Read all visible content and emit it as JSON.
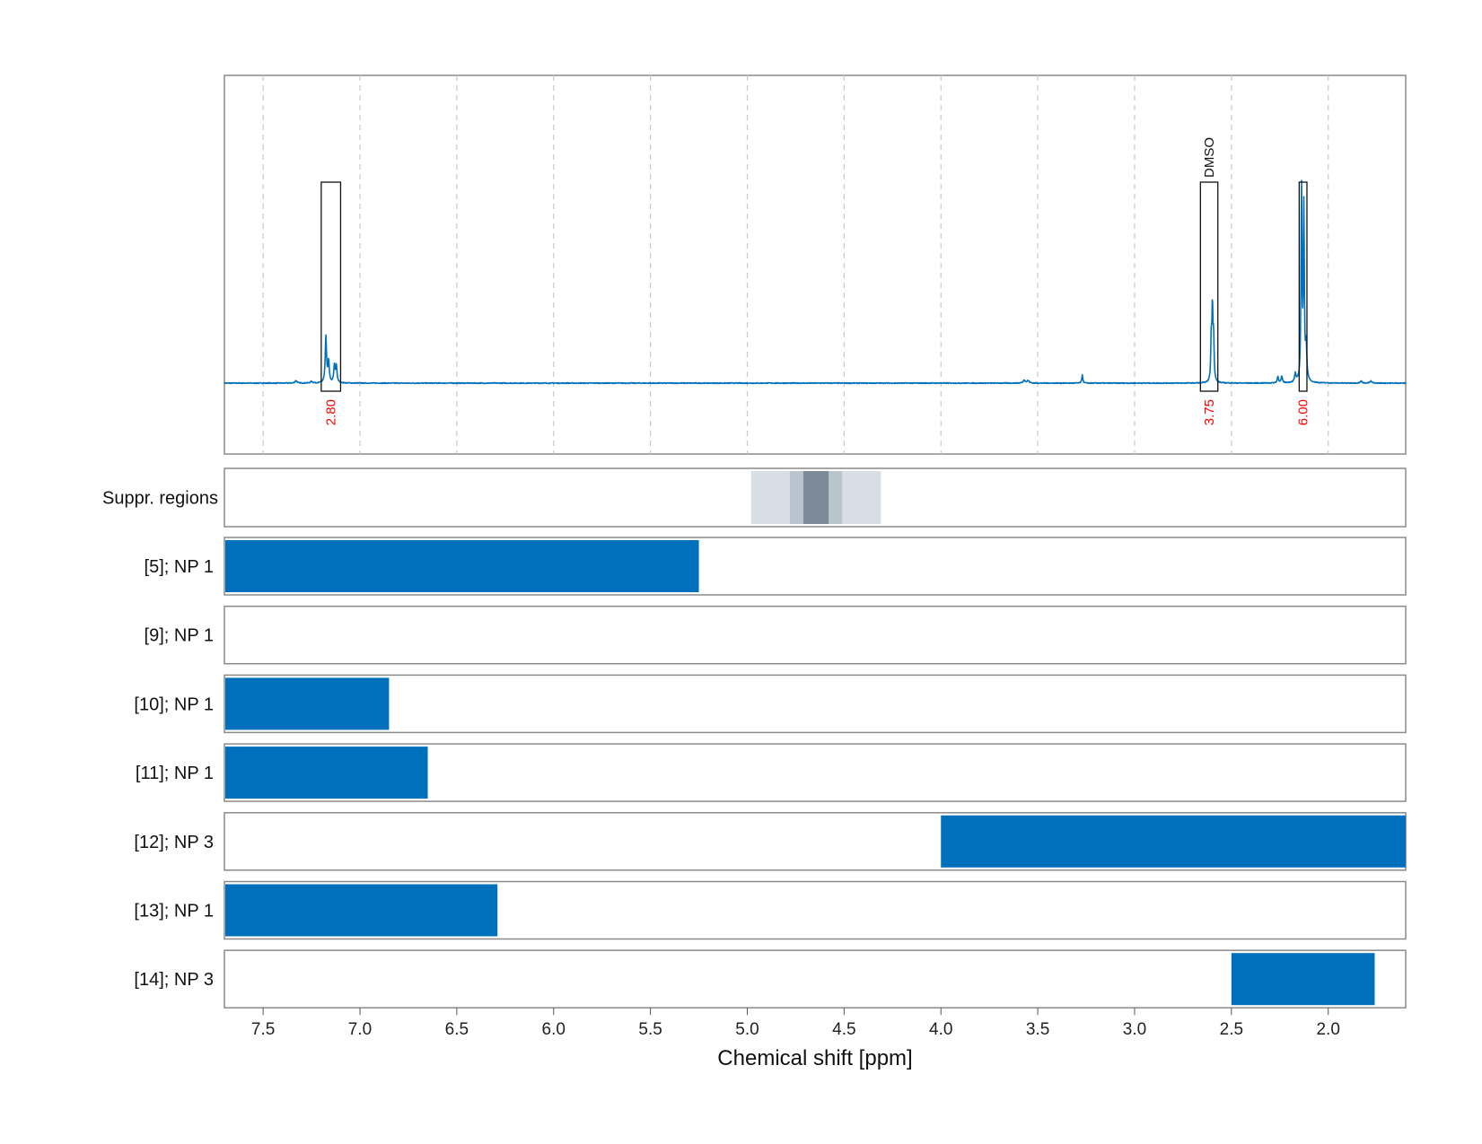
{
  "chart_data": {
    "type": "nmr_spectrum_with_track_bars",
    "xlabel": "Chemical shift [ppm]",
    "xlim": [
      7.7,
      1.6
    ],
    "x_reversed": true,
    "x_ticks": [
      7.5,
      7.0,
      6.5,
      6.0,
      5.5,
      5.0,
      4.5,
      4.0,
      3.5,
      3.0,
      2.5,
      2.0
    ],
    "x_tick_labels": [
      "7.5",
      "7.0",
      "6.5",
      "6.0",
      "5.5",
      "5.0",
      "4.5",
      "4.0",
      "3.5",
      "3.0",
      "2.5",
      "2.0"
    ],
    "spectrum": {
      "color": "#0070bd",
      "baseline_noise": 0.004,
      "peaks": [
        {
          "ppm": 7.176,
          "height": 0.22,
          "width": 0.004
        },
        {
          "ppm": 7.162,
          "height": 0.1,
          "width": 0.004
        },
        {
          "ppm": 7.132,
          "height": 0.08,
          "width": 0.004
        },
        {
          "ppm": 7.122,
          "height": 0.08,
          "width": 0.004
        },
        {
          "ppm": 7.33,
          "height": 0.012,
          "width": 0.006
        },
        {
          "ppm": 7.25,
          "height": 0.008,
          "width": 0.006
        },
        {
          "ppm": 3.57,
          "height": 0.015,
          "width": 0.006
        },
        {
          "ppm": 3.55,
          "height": 0.012,
          "width": 0.006
        },
        {
          "ppm": 3.27,
          "height": 0.04,
          "width": 0.003
        },
        {
          "ppm": 2.604,
          "height": 0.2,
          "width": 0.003
        },
        {
          "ppm": 2.598,
          "height": 0.34,
          "width": 0.003
        },
        {
          "ppm": 2.592,
          "height": 0.2,
          "width": 0.003
        },
        {
          "ppm": 2.26,
          "height": 0.03,
          "width": 0.004
        },
        {
          "ppm": 2.24,
          "height": 0.03,
          "width": 0.004
        },
        {
          "ppm": 2.17,
          "height": 0.04,
          "width": 0.004
        },
        {
          "ppm": 2.138,
          "height": 0.93,
          "width": 0.003
        },
        {
          "ppm": 2.126,
          "height": 0.82,
          "width": 0.003
        },
        {
          "ppm": 2.114,
          "height": 0.16,
          "width": 0.004
        },
        {
          "ppm": 1.83,
          "height": 0.01,
          "width": 0.005
        },
        {
          "ppm": 1.78,
          "height": 0.01,
          "width": 0.005
        }
      ]
    },
    "regions": [
      {
        "from": 7.2,
        "to": 7.1,
        "integral": "2.80",
        "annotation": ""
      },
      {
        "from": 2.66,
        "to": 2.57,
        "integral": "3.75",
        "annotation": "DMSO"
      },
      {
        "from": 2.15,
        "to": 2.11,
        "integral": "6.00",
        "annotation": ""
      }
    ],
    "suppressed_regions": {
      "label": "Suppr. regions",
      "bands": [
        {
          "from": 4.98,
          "to": 4.31,
          "shade": "#d7dee5"
        },
        {
          "from": 4.78,
          "to": 4.51,
          "shade": "#b9c4cd"
        },
        {
          "from": 4.71,
          "to": 4.58,
          "shade": "#7c8b97"
        }
      ]
    },
    "tracks": [
      {
        "label": "[5]; NP 1",
        "from": 7.7,
        "to": 5.25
      },
      {
        "label": "[9]; NP 1",
        "from": null,
        "to": null
      },
      {
        "label": "[10]; NP 1",
        "from": 7.7,
        "to": 6.85
      },
      {
        "label": "[11]; NP 1",
        "from": 7.7,
        "to": 6.65
      },
      {
        "label": "[12]; NP 3",
        "from": 4.0,
        "to": 1.6
      },
      {
        "label": "[13]; NP 1",
        "from": 7.7,
        "to": 6.29
      },
      {
        "label": "[14]; NP 3",
        "from": 2.5,
        "to": 1.76
      }
    ]
  }
}
